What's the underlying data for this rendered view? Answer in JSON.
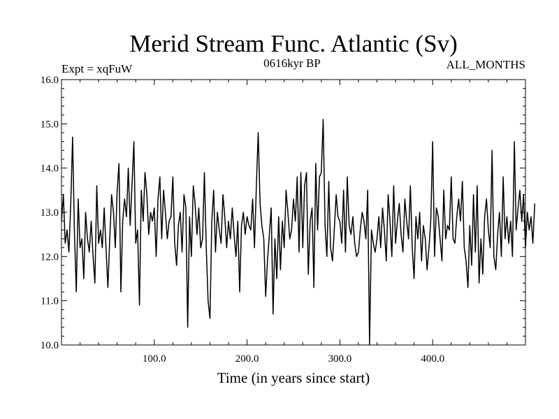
{
  "chart_data": {
    "type": "line",
    "title": "Merid Stream Func. Atlantic (Sv)",
    "subtitle_left": "Expt = xqFuW",
    "subtitle_center": "0616kyr BP",
    "subtitle_right": "ALL_MONTHS",
    "xlabel": "Time (in years since start)",
    "ylabel": "",
    "xlim": [
      0,
      500
    ],
    "ylim": [
      10.0,
      16.0
    ],
    "x_ticks": [
      100,
      200,
      300,
      400
    ],
    "x_tick_labels": [
      "100.0",
      "200.0",
      "300.0",
      "400.0"
    ],
    "y_ticks": [
      10,
      11,
      12,
      13,
      14,
      15,
      16
    ],
    "y_tick_labels": [
      "10.0",
      "11.0",
      "12.0",
      "13.0",
      "14.0",
      "15.0",
      "16.0"
    ],
    "series": [
      {
        "name": "Merid Stream Func. Atlantic",
        "x_start": 0,
        "x_step": 2,
        "values": [
          12.8,
          13.4,
          12.3,
          12.6,
          12.1,
          13.2,
          14.7,
          12.5,
          11.2,
          13.3,
          12.2,
          12.4,
          11.5,
          13.0,
          12.4,
          12.1,
          12.8,
          12.0,
          11.4,
          13.6,
          12.3,
          12.6,
          12.2,
          13.1,
          12.2,
          11.3,
          12.4,
          13.4,
          13.0,
          12.2,
          13.5,
          14.1,
          11.2,
          12.8,
          13.3,
          12.9,
          14.0,
          12.7,
          13.6,
          14.6,
          12.3,
          12.6,
          10.9,
          13.5,
          12.8,
          13.9,
          13.4,
          12.5,
          13.0,
          12.8,
          13.1,
          12.0,
          13.3,
          13.8,
          12.4,
          13.5,
          13.0,
          12.4,
          12.8,
          12.9,
          13.8,
          12.3,
          11.8,
          12.7,
          13.0,
          12.1,
          13.4,
          13.1,
          10.4,
          12.9,
          12.0,
          13.6,
          13.2,
          12.5,
          13.1,
          12.2,
          12.4,
          13.9,
          12.2,
          11.0,
          10.6,
          12.8,
          13.5,
          12.1,
          13.0,
          12.6,
          12.3,
          13.4,
          12.9,
          12.2,
          12.8,
          12.4,
          13.1,
          12.5,
          12.0,
          12.8,
          11.2,
          12.7,
          13.0,
          12.5,
          12.9,
          12.7,
          12.6,
          13.3,
          12.2,
          13.6,
          14.8,
          13.2,
          12.7,
          12.4,
          11.1,
          11.9,
          12.5,
          13.1,
          10.7,
          12.4,
          11.5,
          12.9,
          11.7,
          12.8,
          12.2,
          13.5,
          13.0,
          12.4,
          12.6,
          13.3,
          12.8,
          13.8,
          12.1,
          13.9,
          12.2,
          13.6,
          13.9,
          11.6,
          12.8,
          13.1,
          11.3,
          14.1,
          12.6,
          13.8,
          13.9,
          15.1,
          12.7,
          12.0,
          13.7,
          12.2,
          11.9,
          12.6,
          13.4,
          12.9,
          12.8,
          12.3,
          13.5,
          12.1,
          13.8,
          12.7,
          12.5,
          12.9,
          12.3,
          12.0,
          12.1,
          12.6,
          13.0,
          12.8,
          12.4,
          13.5,
          10.0,
          12.6,
          12.3,
          12.1,
          12.4,
          12.9,
          12.2,
          13.1,
          12.6,
          11.9,
          13.4,
          12.8,
          12.0,
          13.6,
          12.3,
          12.8,
          13.2,
          12.5,
          12.1,
          13.3,
          12.8,
          12.4,
          13.6,
          12.2,
          11.5,
          12.9,
          12.4,
          13.0,
          11.9,
          12.7,
          12.4,
          11.7,
          12.2,
          12.8,
          14.6,
          12.0,
          13.1,
          12.9,
          12.4,
          11.9,
          13.5,
          12.4,
          12.7,
          12.6,
          13.8,
          12.4,
          12.3,
          12.9,
          13.3,
          12.8,
          13.7,
          12.2,
          11.9,
          11.3,
          12.7,
          11.8,
          13.4,
          12.1,
          13.6,
          11.4,
          12.4,
          11.6,
          12.9,
          13.3,
          12.6,
          12.2,
          14.4,
          12.0,
          11.7,
          12.5,
          13.0,
          12.0,
          13.8,
          12.4,
          12.9,
          12.3,
          12.8,
          12.0,
          14.6,
          12.6,
          13.1,
          13.5,
          12.8,
          13.4,
          12.2,
          13.0,
          12.6,
          12.9,
          12.3,
          13.2
        ]
      }
    ]
  }
}
